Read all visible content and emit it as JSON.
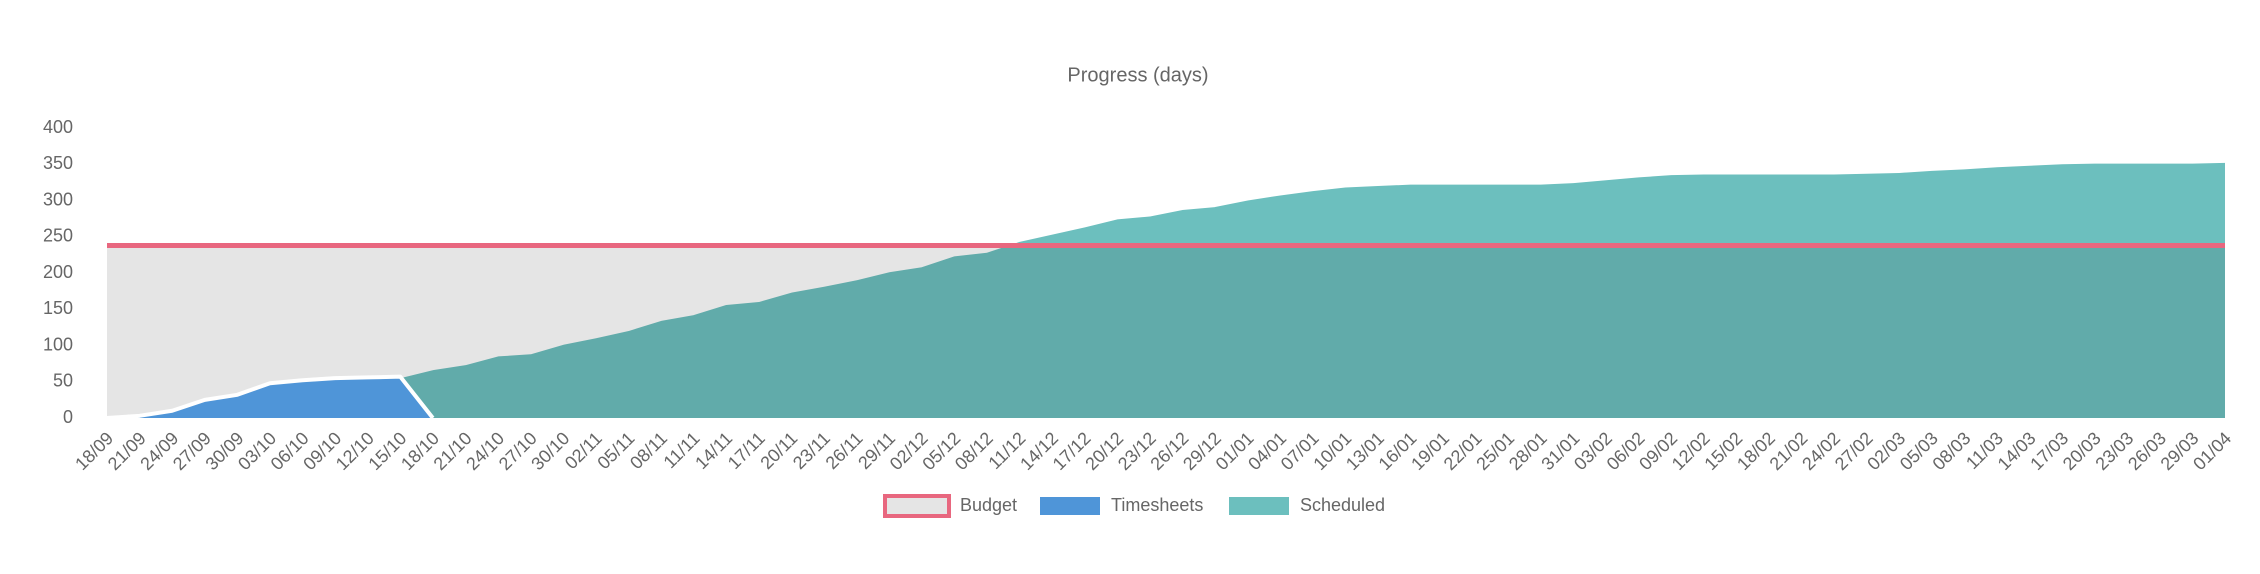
{
  "chart_data": {
    "type": "area",
    "title": "Progress (days)",
    "categories": [
      "18/09",
      "21/09",
      "24/09",
      "27/09",
      "30/09",
      "03/10",
      "06/10",
      "09/10",
      "12/10",
      "15/10",
      "18/10",
      "21/10",
      "24/10",
      "27/10",
      "30/10",
      "02/11",
      "05/11",
      "08/11",
      "11/11",
      "14/11",
      "17/11",
      "20/11",
      "23/11",
      "26/11",
      "29/11",
      "02/12",
      "05/12",
      "08/12",
      "11/12",
      "14/12",
      "17/12",
      "20/12",
      "23/12",
      "26/12",
      "29/12",
      "01/01",
      "04/01",
      "07/01",
      "10/01",
      "13/01",
      "16/01",
      "19/01",
      "22/01",
      "25/01",
      "28/01",
      "31/01",
      "03/02",
      "06/02",
      "09/02",
      "12/02",
      "15/02",
      "18/02",
      "21/02",
      "24/02",
      "27/02",
      "02/03",
      "05/03",
      "08/03",
      "11/03",
      "14/03",
      "17/03",
      "20/03",
      "23/03",
      "26/03",
      "29/03",
      "01/04"
    ],
    "series": [
      {
        "name": "Budget",
        "color": "#e8677f",
        "values": [
          238,
          238,
          238,
          238,
          238,
          238,
          238,
          238,
          238,
          238,
          238,
          238,
          238,
          238,
          238,
          238,
          238,
          238,
          238,
          238,
          238,
          238,
          238,
          238,
          238,
          238,
          238,
          238,
          238,
          238,
          238,
          238,
          238,
          238,
          238,
          238,
          238,
          238,
          238,
          238,
          238,
          238,
          238,
          238,
          238,
          238,
          238,
          238,
          238,
          238,
          238,
          238,
          238,
          238,
          238,
          238,
          238,
          238,
          238,
          238,
          238,
          238,
          238,
          238,
          238,
          238
        ]
      },
      {
        "name": "Timesheets",
        "color": "#4f95d8",
        "values": [
          0,
          3,
          10,
          25,
          32,
          48,
          52,
          55,
          56,
          57,
          0,
          null,
          null,
          null,
          null,
          null,
          null,
          null,
          null,
          null,
          null,
          null,
          null,
          null,
          null,
          null,
          null,
          null,
          null,
          null,
          null,
          null,
          null,
          null,
          null,
          null,
          null,
          null,
          null,
          null,
          null,
          null,
          null,
          null,
          null,
          null,
          null,
          null,
          null,
          null,
          null,
          null,
          null,
          null,
          null,
          null,
          null,
          null,
          null,
          null,
          null,
          null,
          null,
          null,
          null,
          null
        ]
      },
      {
        "name": "Scheduled",
        "color": "#6cbfbe",
        "values": [
          0,
          3,
          10,
          25,
          32,
          48,
          52,
          55,
          56,
          57,
          68,
          75,
          87,
          90,
          103,
          112,
          122,
          136,
          144,
          158,
          162,
          175,
          183,
          192,
          203,
          210,
          225,
          230,
          245,
          255,
          265,
          276,
          280,
          289,
          293,
          302,
          309,
          315,
          320,
          322,
          324,
          324,
          324,
          324,
          324,
          326,
          330,
          334,
          337,
          338,
          338,
          338,
          338,
          338,
          339,
          340,
          343,
          345,
          348,
          350,
          352,
          353,
          353,
          353,
          353,
          354
        ]
      }
    ],
    "ylim": [
      0,
      400
    ],
    "yticks": [
      0,
      50,
      100,
      150,
      200,
      250,
      300,
      350,
      400
    ]
  }
}
